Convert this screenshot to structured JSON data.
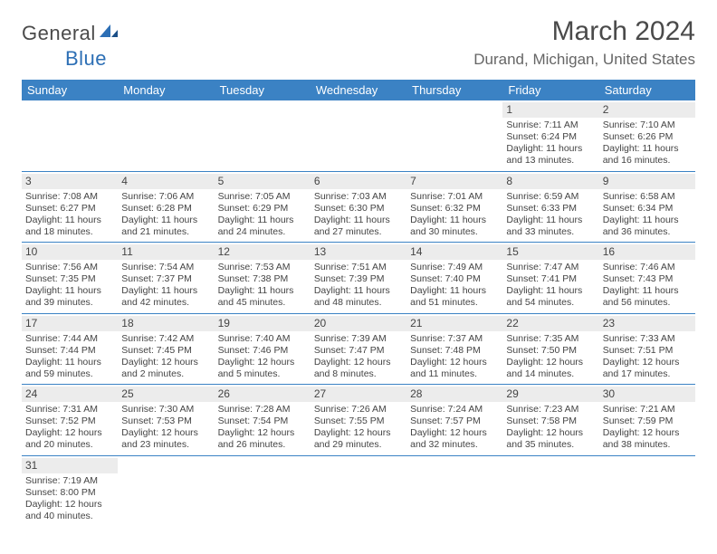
{
  "logo": {
    "part1": "General",
    "part2": "Blue"
  },
  "title": "March 2024",
  "location": "Durand, Michigan, United States",
  "colors": {
    "header_bg": "#3b82c4",
    "header_text": "#ffffff",
    "daynum_bg": "#ececec",
    "border": "#3b82c4",
    "text": "#444444",
    "logo_gray": "#4a4a4a",
    "logo_blue": "#2d6fb5"
  },
  "day_headers": [
    "Sunday",
    "Monday",
    "Tuesday",
    "Wednesday",
    "Thursday",
    "Friday",
    "Saturday"
  ],
  "weeks": [
    [
      {
        "blank": true
      },
      {
        "blank": true
      },
      {
        "blank": true
      },
      {
        "blank": true
      },
      {
        "blank": true
      },
      {
        "day": "1",
        "sunrise": "Sunrise: 7:11 AM",
        "sunset": "Sunset: 6:24 PM",
        "daylight1": "Daylight: 11 hours",
        "daylight2": "and 13 minutes."
      },
      {
        "day": "2",
        "sunrise": "Sunrise: 7:10 AM",
        "sunset": "Sunset: 6:26 PM",
        "daylight1": "Daylight: 11 hours",
        "daylight2": "and 16 minutes."
      }
    ],
    [
      {
        "day": "3",
        "sunrise": "Sunrise: 7:08 AM",
        "sunset": "Sunset: 6:27 PM",
        "daylight1": "Daylight: 11 hours",
        "daylight2": "and 18 minutes."
      },
      {
        "day": "4",
        "sunrise": "Sunrise: 7:06 AM",
        "sunset": "Sunset: 6:28 PM",
        "daylight1": "Daylight: 11 hours",
        "daylight2": "and 21 minutes."
      },
      {
        "day": "5",
        "sunrise": "Sunrise: 7:05 AM",
        "sunset": "Sunset: 6:29 PM",
        "daylight1": "Daylight: 11 hours",
        "daylight2": "and 24 minutes."
      },
      {
        "day": "6",
        "sunrise": "Sunrise: 7:03 AM",
        "sunset": "Sunset: 6:30 PM",
        "daylight1": "Daylight: 11 hours",
        "daylight2": "and 27 minutes."
      },
      {
        "day": "7",
        "sunrise": "Sunrise: 7:01 AM",
        "sunset": "Sunset: 6:32 PM",
        "daylight1": "Daylight: 11 hours",
        "daylight2": "and 30 minutes."
      },
      {
        "day": "8",
        "sunrise": "Sunrise: 6:59 AM",
        "sunset": "Sunset: 6:33 PM",
        "daylight1": "Daylight: 11 hours",
        "daylight2": "and 33 minutes."
      },
      {
        "day": "9",
        "sunrise": "Sunrise: 6:58 AM",
        "sunset": "Sunset: 6:34 PM",
        "daylight1": "Daylight: 11 hours",
        "daylight2": "and 36 minutes."
      }
    ],
    [
      {
        "day": "10",
        "sunrise": "Sunrise: 7:56 AM",
        "sunset": "Sunset: 7:35 PM",
        "daylight1": "Daylight: 11 hours",
        "daylight2": "and 39 minutes."
      },
      {
        "day": "11",
        "sunrise": "Sunrise: 7:54 AM",
        "sunset": "Sunset: 7:37 PM",
        "daylight1": "Daylight: 11 hours",
        "daylight2": "and 42 minutes."
      },
      {
        "day": "12",
        "sunrise": "Sunrise: 7:53 AM",
        "sunset": "Sunset: 7:38 PM",
        "daylight1": "Daylight: 11 hours",
        "daylight2": "and 45 minutes."
      },
      {
        "day": "13",
        "sunrise": "Sunrise: 7:51 AM",
        "sunset": "Sunset: 7:39 PM",
        "daylight1": "Daylight: 11 hours",
        "daylight2": "and 48 minutes."
      },
      {
        "day": "14",
        "sunrise": "Sunrise: 7:49 AM",
        "sunset": "Sunset: 7:40 PM",
        "daylight1": "Daylight: 11 hours",
        "daylight2": "and 51 minutes."
      },
      {
        "day": "15",
        "sunrise": "Sunrise: 7:47 AM",
        "sunset": "Sunset: 7:41 PM",
        "daylight1": "Daylight: 11 hours",
        "daylight2": "and 54 minutes."
      },
      {
        "day": "16",
        "sunrise": "Sunrise: 7:46 AM",
        "sunset": "Sunset: 7:43 PM",
        "daylight1": "Daylight: 11 hours",
        "daylight2": "and 56 minutes."
      }
    ],
    [
      {
        "day": "17",
        "sunrise": "Sunrise: 7:44 AM",
        "sunset": "Sunset: 7:44 PM",
        "daylight1": "Daylight: 11 hours",
        "daylight2": "and 59 minutes."
      },
      {
        "day": "18",
        "sunrise": "Sunrise: 7:42 AM",
        "sunset": "Sunset: 7:45 PM",
        "daylight1": "Daylight: 12 hours",
        "daylight2": "and 2 minutes."
      },
      {
        "day": "19",
        "sunrise": "Sunrise: 7:40 AM",
        "sunset": "Sunset: 7:46 PM",
        "daylight1": "Daylight: 12 hours",
        "daylight2": "and 5 minutes."
      },
      {
        "day": "20",
        "sunrise": "Sunrise: 7:39 AM",
        "sunset": "Sunset: 7:47 PM",
        "daylight1": "Daylight: 12 hours",
        "daylight2": "and 8 minutes."
      },
      {
        "day": "21",
        "sunrise": "Sunrise: 7:37 AM",
        "sunset": "Sunset: 7:48 PM",
        "daylight1": "Daylight: 12 hours",
        "daylight2": "and 11 minutes."
      },
      {
        "day": "22",
        "sunrise": "Sunrise: 7:35 AM",
        "sunset": "Sunset: 7:50 PM",
        "daylight1": "Daylight: 12 hours",
        "daylight2": "and 14 minutes."
      },
      {
        "day": "23",
        "sunrise": "Sunrise: 7:33 AM",
        "sunset": "Sunset: 7:51 PM",
        "daylight1": "Daylight: 12 hours",
        "daylight2": "and 17 minutes."
      }
    ],
    [
      {
        "day": "24",
        "sunrise": "Sunrise: 7:31 AM",
        "sunset": "Sunset: 7:52 PM",
        "daylight1": "Daylight: 12 hours",
        "daylight2": "and 20 minutes."
      },
      {
        "day": "25",
        "sunrise": "Sunrise: 7:30 AM",
        "sunset": "Sunset: 7:53 PM",
        "daylight1": "Daylight: 12 hours",
        "daylight2": "and 23 minutes."
      },
      {
        "day": "26",
        "sunrise": "Sunrise: 7:28 AM",
        "sunset": "Sunset: 7:54 PM",
        "daylight1": "Daylight: 12 hours",
        "daylight2": "and 26 minutes."
      },
      {
        "day": "27",
        "sunrise": "Sunrise: 7:26 AM",
        "sunset": "Sunset: 7:55 PM",
        "daylight1": "Daylight: 12 hours",
        "daylight2": "and 29 minutes."
      },
      {
        "day": "28",
        "sunrise": "Sunrise: 7:24 AM",
        "sunset": "Sunset: 7:57 PM",
        "daylight1": "Daylight: 12 hours",
        "daylight2": "and 32 minutes."
      },
      {
        "day": "29",
        "sunrise": "Sunrise: 7:23 AM",
        "sunset": "Sunset: 7:58 PM",
        "daylight1": "Daylight: 12 hours",
        "daylight2": "and 35 minutes."
      },
      {
        "day": "30",
        "sunrise": "Sunrise: 7:21 AM",
        "sunset": "Sunset: 7:59 PM",
        "daylight1": "Daylight: 12 hours",
        "daylight2": "and 38 minutes."
      }
    ],
    [
      {
        "day": "31",
        "sunrise": "Sunrise: 7:19 AM",
        "sunset": "Sunset: 8:00 PM",
        "daylight1": "Daylight: 12 hours",
        "daylight2": "and 40 minutes."
      },
      {
        "blank": true
      },
      {
        "blank": true
      },
      {
        "blank": true
      },
      {
        "blank": true
      },
      {
        "blank": true
      },
      {
        "blank": true
      }
    ]
  ]
}
